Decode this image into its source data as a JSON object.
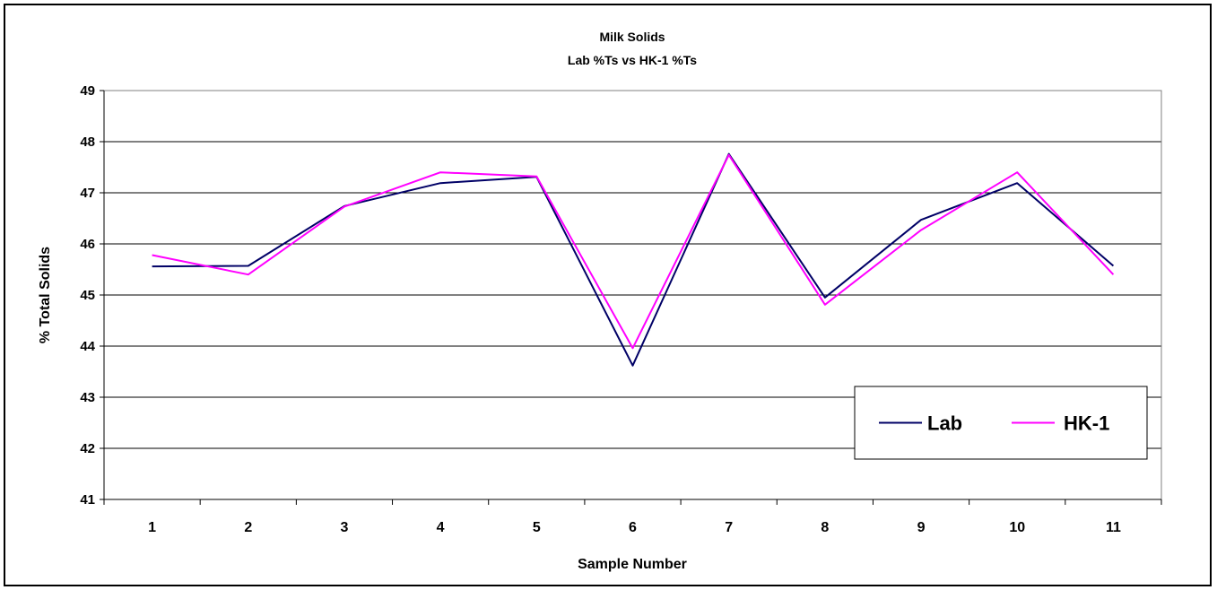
{
  "chart_data": {
    "type": "line",
    "title": "Milk Solids",
    "subtitle": "Lab %Ts vs HK-1 %Ts",
    "xlabel": "Sample Number",
    "ylabel": "% Total Solids",
    "categories": [
      "1",
      "2",
      "3",
      "4",
      "5",
      "6",
      "7",
      "8",
      "9",
      "10",
      "11"
    ],
    "ylim": [
      41,
      49
    ],
    "yticks": [
      "41",
      "42",
      "43",
      "44",
      "45",
      "46",
      "47",
      "48",
      "49"
    ],
    "grid": "horizontal",
    "legend_position": "bottom-right",
    "series": [
      {
        "name": "Lab",
        "color": "#000066",
        "values": [
          45.56,
          45.57,
          46.74,
          47.19,
          47.31,
          43.62,
          47.76,
          44.95,
          46.47,
          47.19,
          45.57
        ]
      },
      {
        "name": "HK-1",
        "color": "#ff00ff",
        "values": [
          45.78,
          45.4,
          46.73,
          47.4,
          47.32,
          43.96,
          47.74,
          44.81,
          46.27,
          47.4,
          45.4
        ]
      }
    ]
  }
}
